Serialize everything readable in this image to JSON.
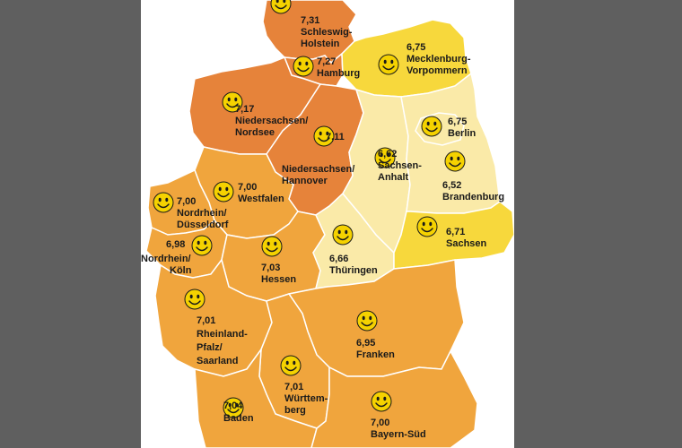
{
  "colors": {
    "background": "#5f5f5f",
    "panel": "#ffffff",
    "border": "#ffffff",
    "tier_1": "#e6833a",
    "tier_2": "#f0a53d",
    "tier_3": "#f7d83c",
    "tier_4": "#faeaa8",
    "smiley": "#f5d200"
  },
  "regions": [
    {
      "id": "schleswig-holstein",
      "value": "7,31",
      "name_lines": [
        "Schleswig-",
        "Holstein"
      ]
    },
    {
      "id": "hamburg",
      "value": "7,27",
      "name_lines": [
        "Hamburg"
      ]
    },
    {
      "id": "mecklenburg-vorpommern",
      "value": "6,75",
      "name_lines": [
        "Mecklenburg-",
        "Vorpommern"
      ]
    },
    {
      "id": "niedersachsen-nordsee",
      "value": "7,17",
      "name_lines": [
        "Niedersachsen/",
        "Nordsee"
      ]
    },
    {
      "id": "niedersachsen-hannover",
      "value": "7,11",
      "name_lines": [
        "Niedersachsen/",
        "Hannover"
      ]
    },
    {
      "id": "berlin",
      "value": "6,75",
      "name_lines": [
        "Berlin"
      ]
    },
    {
      "id": "sachsen-anhalt",
      "value": "6,62",
      "name_lines": [
        "Sachsen-",
        "Anhalt"
      ]
    },
    {
      "id": "brandenburg",
      "value": "6,52",
      "name_lines": [
        "Brandenburg"
      ]
    },
    {
      "id": "westfalen",
      "value": "7,00",
      "name_lines": [
        "Westfalen"
      ]
    },
    {
      "id": "nordrhein-duesseldorf",
      "value": "7,00",
      "name_lines": [
        "Nordrhein/",
        "Düsseldorf"
      ]
    },
    {
      "id": "nordrhein-koeln",
      "value": "6,98",
      "name_lines": [
        "Nordrhein/",
        "Köln"
      ]
    },
    {
      "id": "hessen",
      "value": "7,03",
      "name_lines": [
        "Hessen"
      ]
    },
    {
      "id": "thueringen",
      "value": "6,66",
      "name_lines": [
        "Thüringen"
      ]
    },
    {
      "id": "sachsen",
      "value": "6,71",
      "name_lines": [
        "Sachsen"
      ]
    },
    {
      "id": "rheinland-pfalz-saarland",
      "value": "7,01",
      "name_lines": [
        "Rheinland-",
        "Pfalz/",
        "Saarland"
      ]
    },
    {
      "id": "franken",
      "value": "6,95",
      "name_lines": [
        "Franken"
      ]
    },
    {
      "id": "wuerttemberg",
      "value": "7,01",
      "name_lines": [
        "Württem-",
        "berg"
      ]
    },
    {
      "id": "baden",
      "value": "7,04",
      "name_lines": [
        "Baden"
      ]
    },
    {
      "id": "bayern-sued",
      "value": "7,00",
      "name_lines": [
        "Bayern-Süd"
      ]
    }
  ]
}
